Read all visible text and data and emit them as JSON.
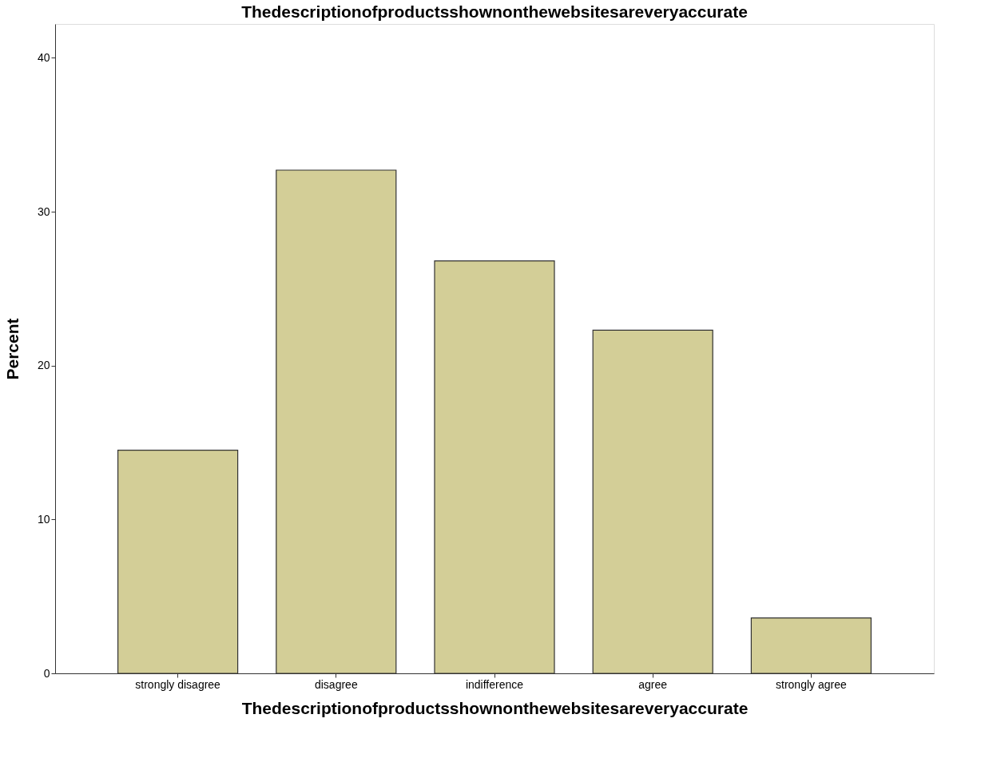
{
  "chart_data": {
    "type": "bar",
    "title": "Thedescriptionofproductsshownonthewebsitesareveryaccurate",
    "xlabel": "Thedescriptionofproductsshownonthewebsitesareveryaccurate",
    "ylabel": "Percent",
    "categories": [
      "strongly disagree",
      "disagree",
      "indifference",
      "agree",
      "strongly agree"
    ],
    "values": [
      14.5,
      32.7,
      26.8,
      22.3,
      3.6
    ],
    "color": "#d3ce97",
    "ylim": [
      0,
      42.2
    ],
    "yticks": [
      0,
      10,
      20,
      30,
      40
    ],
    "grid": false
  }
}
